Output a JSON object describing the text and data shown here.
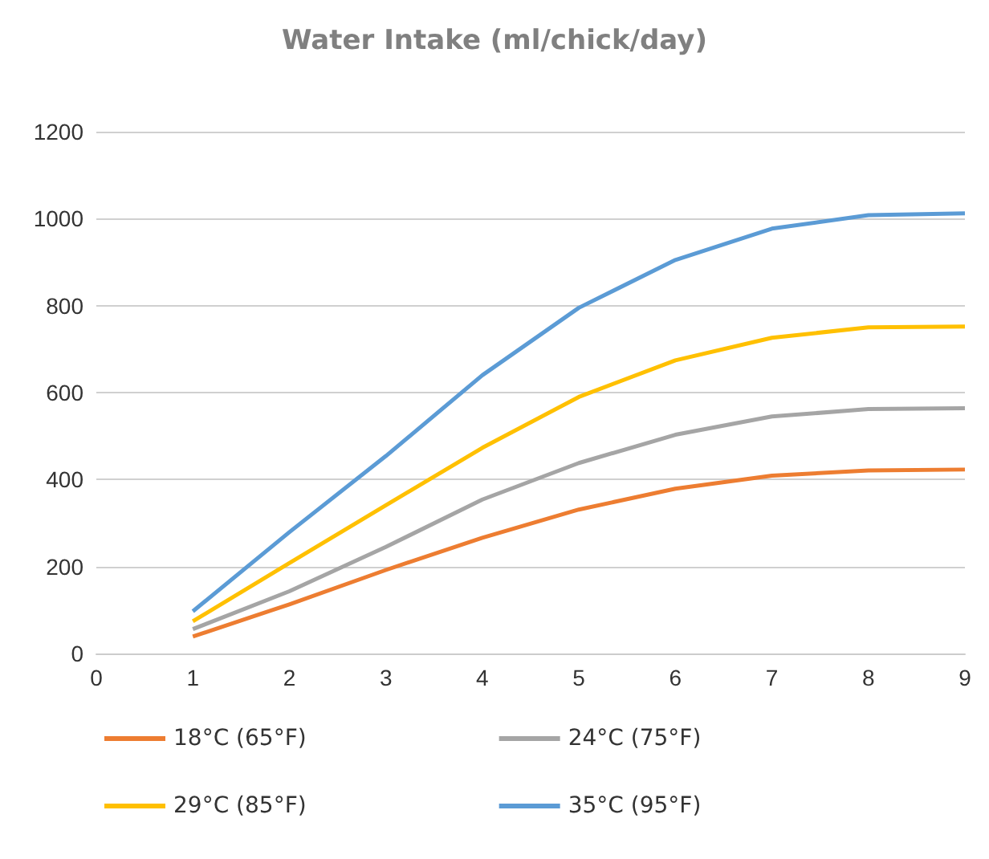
{
  "chart_data": {
    "type": "line",
    "title": "Water Intake (ml/chick/day)",
    "x": [
      1,
      2,
      3,
      4,
      5,
      6,
      7,
      8,
      9
    ],
    "series": [
      {
        "name": "18°C (65°F)",
        "color": "#ed7d31",
        "values": [
          39,
          113,
          192,
          266,
          331,
          379,
          409,
          421,
          423
        ]
      },
      {
        "name": "24°C (75°F)",
        "color": "#a5a5a5",
        "values": [
          56,
          143,
          245,
          354,
          438,
          503,
          545,
          562,
          564
        ]
      },
      {
        "name": "29°C (85°F)",
        "color": "#ffc000",
        "values": [
          74,
          208,
          341,
          473,
          590,
          674,
          726,
          750,
          752
        ]
      },
      {
        "name": "35°C (95°F)",
        "color": "#5b9bd5",
        "values": [
          97,
          279,
          454,
          640,
          795,
          905,
          977,
          1008,
          1012
        ]
      }
    ],
    "xlim": [
      0,
      9
    ],
    "xticks": [
      0,
      1,
      2,
      3,
      4,
      5,
      6,
      7,
      8,
      9
    ],
    "ylim": [
      0,
      1200
    ],
    "yticks": [
      0,
      200,
      400,
      600,
      800,
      1000,
      1200
    ],
    "grid": "y",
    "legend": "bottom",
    "marker": "none",
    "line_style": "solid"
  }
}
